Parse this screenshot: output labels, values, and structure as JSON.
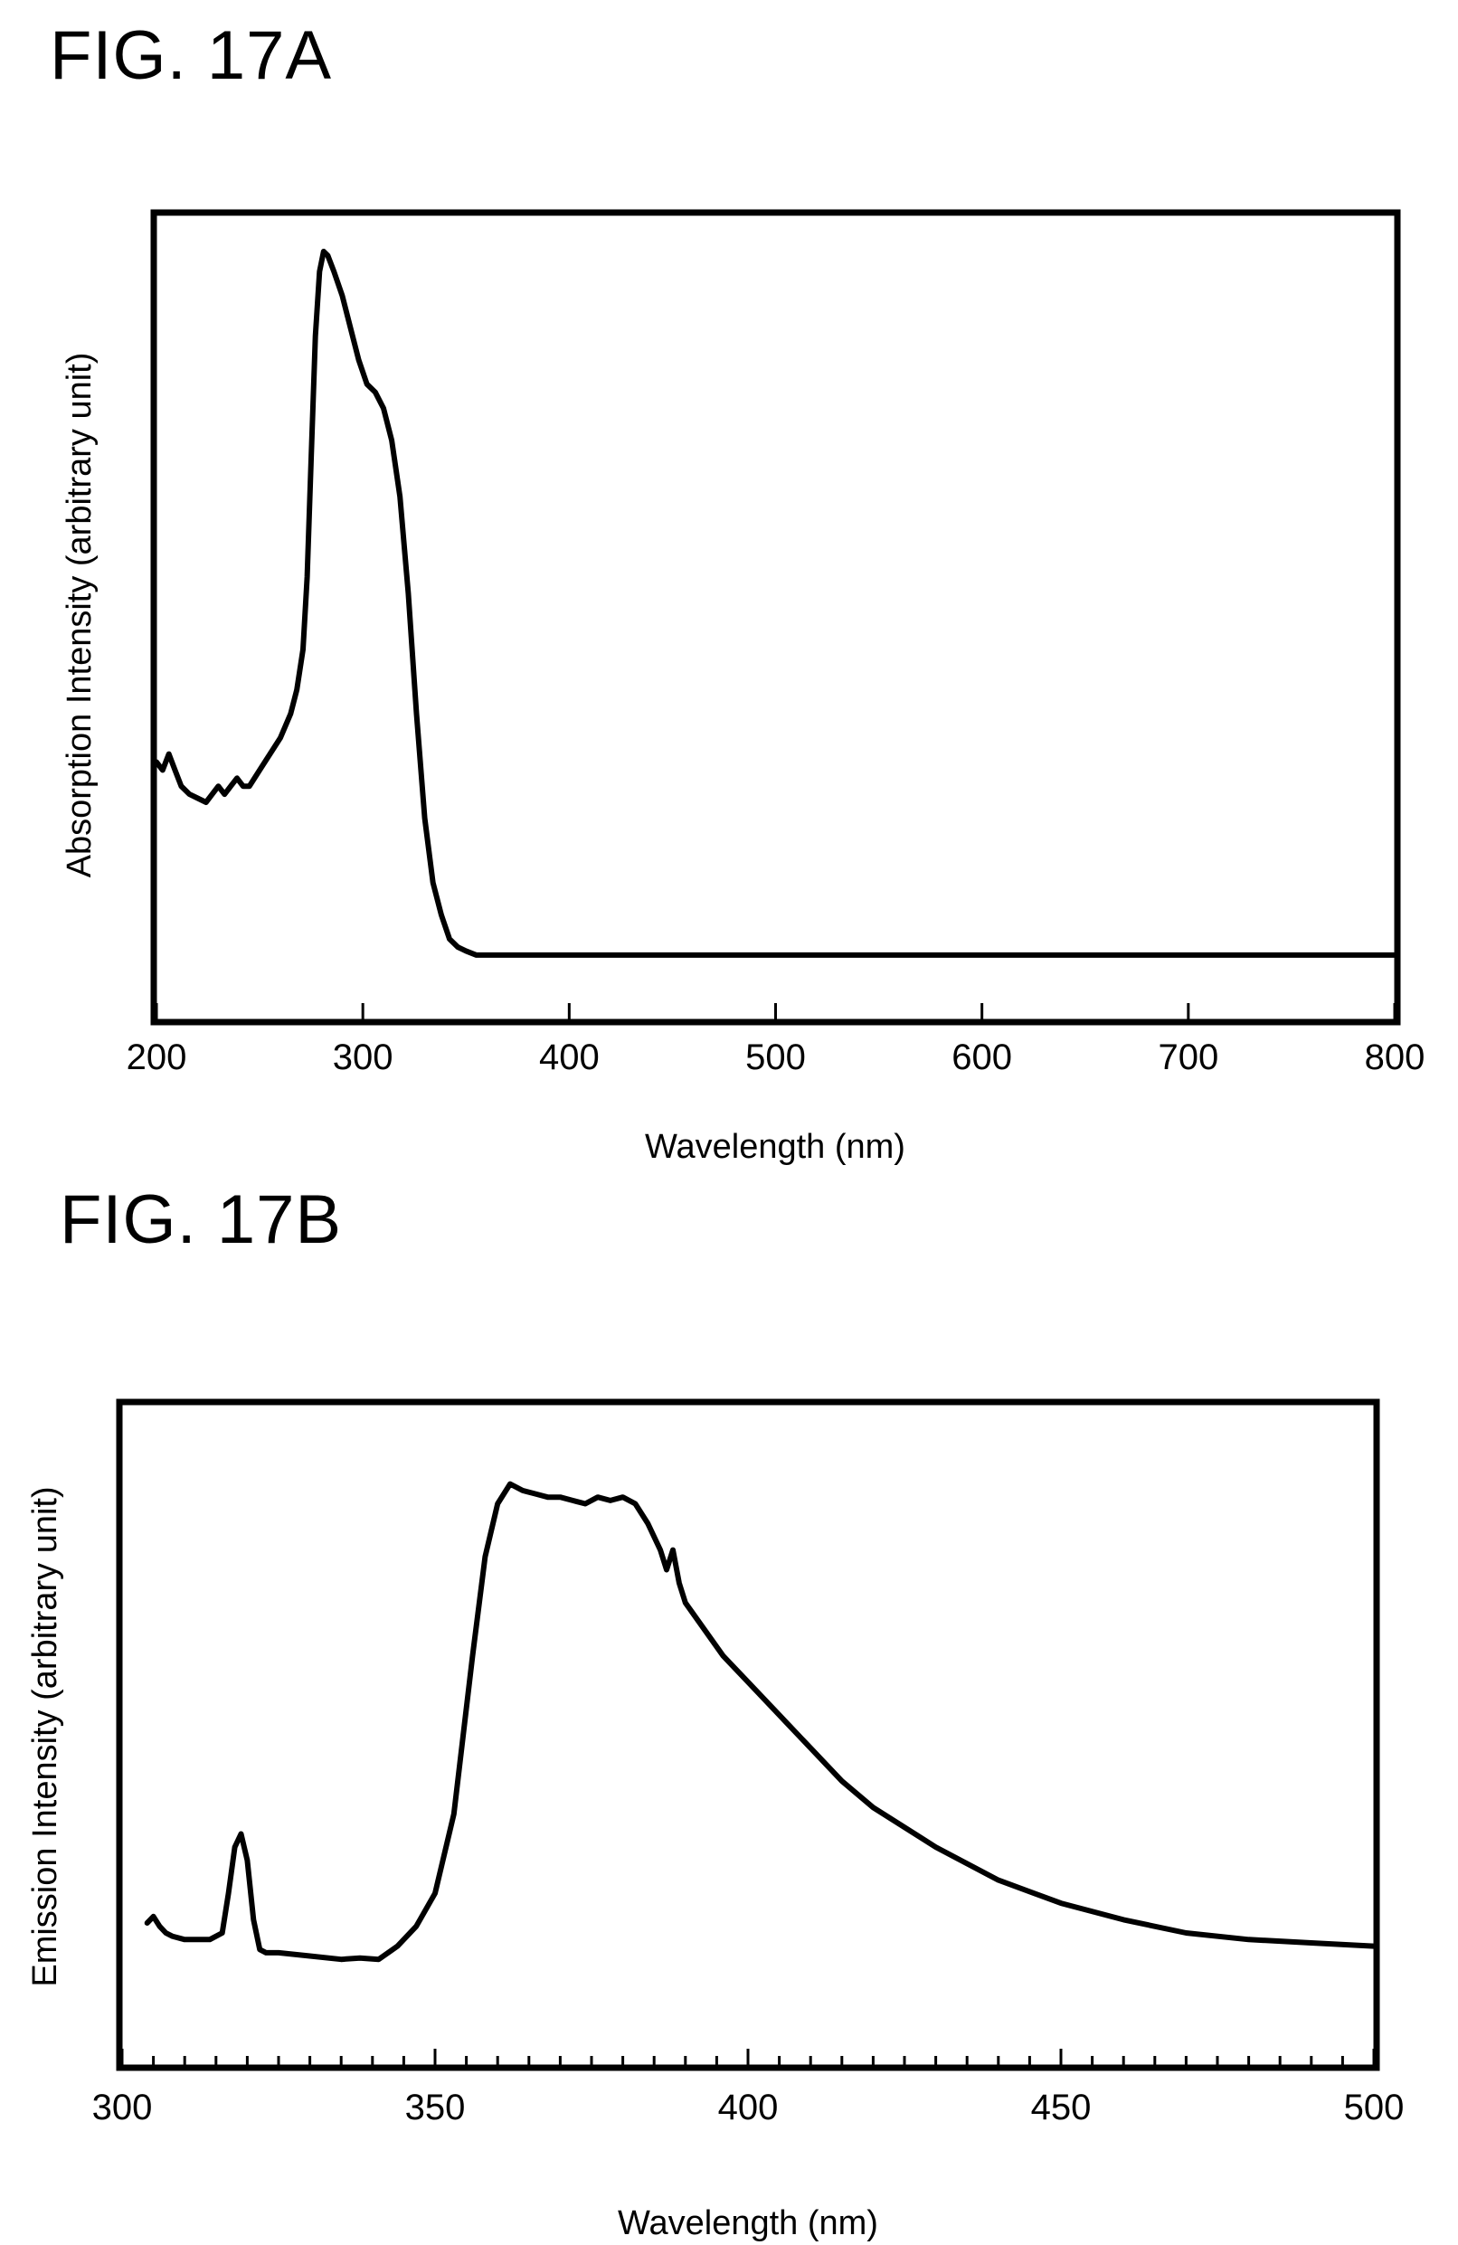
{
  "figures": {
    "a": {
      "label": "FIG. 17A"
    },
    "b": {
      "label": "FIG. 17B"
    }
  },
  "chart_data": [
    {
      "type": "line",
      "title": "",
      "xlabel": "Wavelength (nm)",
      "ylabel": "Absorption Intensity (arbitrary unit)",
      "xlim": [
        200,
        800
      ],
      "ylim": [
        0,
        1
      ],
      "xticks": [
        200,
        300,
        400,
        500,
        600,
        700,
        800
      ],
      "minor_xticks": [],
      "grid": false,
      "series": [
        {
          "x": [
            200,
            203,
            206,
            209,
            212,
            216,
            220,
            224,
            227,
            230,
            233,
            236,
            239,
            242,
            245,
            250,
            255,
            260,
            265,
            268,
            271,
            273,
            275,
            277,
            279,
            281,
            283,
            286,
            290,
            294,
            298,
            302,
            306,
            310,
            314,
            318,
            322,
            326,
            330,
            334,
            338,
            342,
            346,
            350,
            355,
            360,
            370,
            380,
            400,
            450,
            500,
            600,
            700,
            800
          ],
          "y": [
            0.32,
            0.31,
            0.33,
            0.31,
            0.29,
            0.28,
            0.275,
            0.27,
            0.28,
            0.29,
            0.28,
            0.29,
            0.3,
            0.29,
            0.29,
            0.31,
            0.33,
            0.35,
            0.38,
            0.41,
            0.46,
            0.55,
            0.7,
            0.85,
            0.93,
            0.955,
            0.95,
            0.93,
            0.9,
            0.86,
            0.82,
            0.79,
            0.78,
            0.76,
            0.72,
            0.65,
            0.53,
            0.38,
            0.25,
            0.17,
            0.13,
            0.1,
            0.09,
            0.085,
            0.08,
            0.08,
            0.08,
            0.08,
            0.08,
            0.08,
            0.08,
            0.08,
            0.08,
            0.08
          ]
        }
      ]
    },
    {
      "type": "line",
      "title": "",
      "xlabel": "Wavelength (nm)",
      "ylabel": "Emission Intensity (arbitrary unit)",
      "xlim": [
        300,
        500
      ],
      "ylim": [
        0,
        1
      ],
      "xticks": [
        300,
        350,
        400,
        450,
        500
      ],
      "minor_xticks": [
        305,
        310,
        315,
        320,
        325,
        330,
        335,
        340,
        345,
        355,
        360,
        365,
        370,
        375,
        380,
        385,
        390,
        395,
        405,
        410,
        415,
        420,
        425,
        430,
        435,
        440,
        445,
        455,
        460,
        465,
        470,
        475,
        480,
        485,
        490,
        495
      ],
      "grid": false,
      "series": [
        {
          "x": [
            304,
            305,
            306,
            307,
            308,
            310,
            312,
            314,
            316,
            317,
            318,
            319,
            320,
            321,
            322,
            323,
            325,
            330,
            335,
            338,
            341,
            344,
            347,
            350,
            353,
            356,
            358,
            360,
            362,
            364,
            366,
            368,
            370,
            372,
            374,
            376,
            378,
            380,
            382,
            384,
            386,
            387,
            388,
            389,
            390,
            393,
            396,
            400,
            405,
            410,
            415,
            420,
            430,
            440,
            450,
            460,
            470,
            480,
            490,
            500
          ],
          "y": [
            0.215,
            0.225,
            0.21,
            0.2,
            0.195,
            0.19,
            0.19,
            0.19,
            0.2,
            0.26,
            0.33,
            0.35,
            0.31,
            0.22,
            0.175,
            0.17,
            0.17,
            0.165,
            0.16,
            0.162,
            0.16,
            0.18,
            0.21,
            0.26,
            0.38,
            0.62,
            0.77,
            0.85,
            0.88,
            0.87,
            0.865,
            0.86,
            0.86,
            0.855,
            0.85,
            0.86,
            0.855,
            0.86,
            0.85,
            0.82,
            0.78,
            0.75,
            0.78,
            0.73,
            0.7,
            0.66,
            0.62,
            0.58,
            0.53,
            0.48,
            0.43,
            0.39,
            0.33,
            0.28,
            0.245,
            0.22,
            0.2,
            0.19,
            0.185,
            0.18
          ]
        }
      ]
    }
  ]
}
